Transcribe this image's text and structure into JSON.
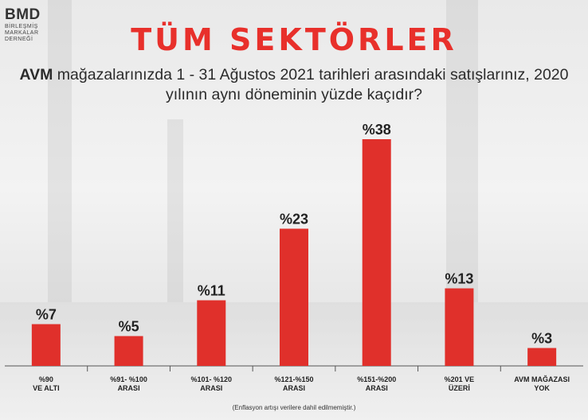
{
  "brand": {
    "mark": "BMD",
    "line1": "BİRLEŞMİŞ",
    "line2": "MARKALAR",
    "line3": "DERNEĞİ"
  },
  "header": {
    "title": "TÜM SEKTÖRLER",
    "question_bold": "AVM",
    "question_rest": " mağazalarınızda 1 - 31 Ağustos 2021 tarihleri arasındaki satışlarınız, 2020 yılının aynı döneminin yüzde kaçıdır?"
  },
  "footnote": "(Enflasyon artışı verilere dahil edilmemiştir.)",
  "colors": {
    "bar": "#e0302b",
    "title": "#e8302b",
    "axis": "#555555"
  },
  "chart_data": {
    "type": "bar",
    "categories": [
      [
        "%90",
        "VE ALTI"
      ],
      [
        "%91- %100",
        "ARASI"
      ],
      [
        "%101- %120",
        "ARASI"
      ],
      [
        "%121-%150",
        "ARASI"
      ],
      [
        "%151-%200",
        "ARASI"
      ],
      [
        "%201 VE",
        "ÜZERİ"
      ],
      [
        "AVM MAĞAZASI",
        "YOK"
      ]
    ],
    "values": [
      7,
      5,
      11,
      23,
      38,
      13,
      3
    ],
    "data_labels": [
      "%7",
      "%5",
      "%11",
      "%23",
      "%38",
      "%13",
      "%3"
    ],
    "ylim": [
      0,
      40
    ]
  }
}
